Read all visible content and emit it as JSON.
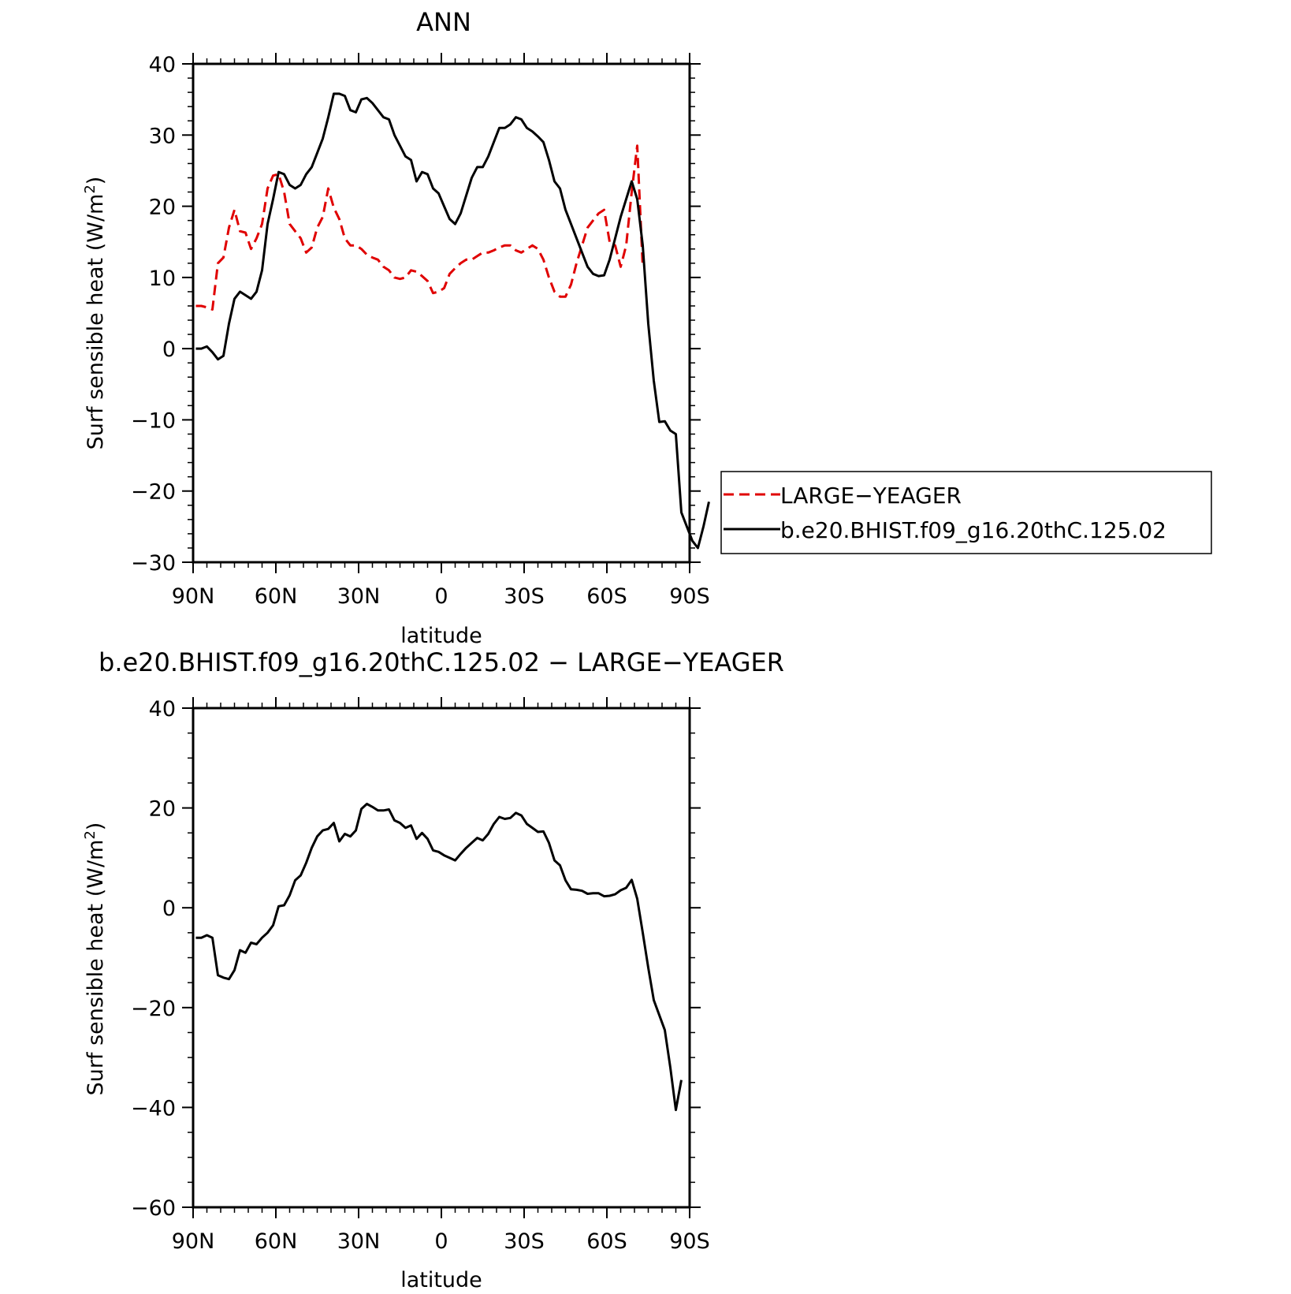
{
  "chart_data": [
    {
      "type": "line",
      "title": "ANN",
      "xlabel": "latitude",
      "ylabel": "Surf sensible heat (W/m",
      "ylabel_sup": "2",
      "ylabel_close": ")",
      "xlim": [
        90,
        -90
      ],
      "ylim": [
        -30,
        40
      ],
      "xticks": [
        90,
        60,
        30,
        0,
        -30,
        -60,
        -90
      ],
      "xtick_labels": [
        "90N",
        "60N",
        "30N",
        "0",
        "30S",
        "60S",
        "90S"
      ],
      "yticks": [
        40,
        30,
        20,
        10,
        0,
        -10,
        -20,
        -30
      ],
      "ytick_labels": [
        "40",
        "30",
        "20",
        "10",
        "0",
        "−10",
        "−20",
        "−30"
      ],
      "legend": {
        "placement": "right",
        "entries": [
          "LARGE−YEAGER",
          "b.e20.BHIST.f09_g16.20thC.125.02"
        ]
      },
      "series": [
        {
          "name": "LARGE−YEAGER",
          "color": "#e00000",
          "dash": true,
          "points": [
            [
              89,
              6
            ],
            [
              87,
              6
            ],
            [
              85,
              5.8
            ],
            [
              83,
              5.5
            ],
            [
              81,
              12
            ],
            [
              79,
              12.8
            ],
            [
              77,
              17
            ],
            [
              75,
              19.5
            ],
            [
              73,
              16.5
            ],
            [
              71,
              16.3
            ],
            [
              69,
              14
            ],
            [
              67,
              15.5
            ],
            [
              65,
              17.5
            ],
            [
              63,
              22.5
            ],
            [
              61,
              24.3
            ],
            [
              59,
              24.5
            ],
            [
              57,
              22
            ],
            [
              55,
              17.5
            ],
            [
              53,
              16.5
            ],
            [
              51,
              15.5
            ],
            [
              49,
              13.5
            ],
            [
              47,
              14.2
            ],
            [
              45,
              17
            ],
            [
              43,
              18.5
            ],
            [
              41,
              22.5
            ],
            [
              39,
              19.8
            ],
            [
              37,
              18.2
            ],
            [
              35,
              15.5
            ],
            [
              33,
              14.5
            ],
            [
              31,
              14.5
            ],
            [
              29,
              14
            ],
            [
              27,
              13.2
            ],
            [
              25,
              12.8
            ],
            [
              23,
              12.5
            ],
            [
              21,
              11.5
            ],
            [
              19,
              11
            ],
            [
              17,
              10
            ],
            [
              15,
              9.8
            ],
            [
              13,
              10
            ],
            [
              11,
              11
            ],
            [
              9,
              10.8
            ],
            [
              7,
              10.2
            ],
            [
              5,
              9.5
            ],
            [
              3,
              7.8
            ],
            [
              1,
              8
            ],
            [
              -1,
              8.5
            ],
            [
              -3,
              10.5
            ],
            [
              -5,
              11.3
            ],
            [
              -7,
              12
            ],
            [
              -9,
              12.5
            ],
            [
              -11,
              12.5
            ],
            [
              -13,
              13
            ],
            [
              -15,
              13.5
            ],
            [
              -17,
              13.5
            ],
            [
              -19,
              13.8
            ],
            [
              -21,
              14.2
            ],
            [
              -23,
              14.5
            ],
            [
              -25,
              14.5
            ],
            [
              -27,
              13.8
            ],
            [
              -29,
              13.5
            ],
            [
              -31,
              14
            ],
            [
              -33,
              14.5
            ],
            [
              -35,
              14
            ],
            [
              -37,
              12.5
            ],
            [
              -39,
              10
            ],
            [
              -41,
              8
            ],
            [
              -43,
              7.3
            ],
            [
              -45,
              7.3
            ],
            [
              -47,
              9
            ],
            [
              -49,
              12
            ],
            [
              -51,
              14.5
            ],
            [
              -53,
              17
            ],
            [
              -55,
              18
            ],
            [
              -57,
              19
            ],
            [
              -59,
              19.5
            ],
            [
              -61,
              15
            ],
            [
              -63,
              14.5
            ],
            [
              -65,
              11.5
            ],
            [
              -67,
              14.5
            ],
            [
              -69,
              22
            ],
            [
              -71,
              28.5
            ],
            [
              -73,
              11.5
            ]
          ]
        },
        {
          "name": "b.e20.BHIST.f09_g16.20thC.125.02",
          "color": "#000000",
          "dash": false,
          "points": [
            [
              89,
              0
            ],
            [
              87,
              0
            ],
            [
              85,
              0.3
            ],
            [
              83,
              -0.5
            ],
            [
              81,
              -1.5
            ],
            [
              79,
              -1
            ],
            [
              77,
              3.5
            ],
            [
              75,
              7
            ],
            [
              73,
              8
            ],
            [
              71,
              7.5
            ],
            [
              69,
              7
            ],
            [
              67,
              8
            ],
            [
              65,
              11
            ],
            [
              63,
              17.5
            ],
            [
              61,
              21
            ],
            [
              59,
              24.8
            ],
            [
              57,
              24.5
            ],
            [
              55,
              23
            ],
            [
              53,
              22.5
            ],
            [
              51,
              23
            ],
            [
              49,
              24.5
            ],
            [
              47,
              25.5
            ],
            [
              45,
              27.5
            ],
            [
              43,
              29.5
            ],
            [
              41,
              32.5
            ],
            [
              39,
              35.8
            ],
            [
              37,
              35.8
            ],
            [
              35,
              35.5
            ],
            [
              33,
              33.5
            ],
            [
              31,
              33.2
            ],
            [
              29,
              35
            ],
            [
              27,
              35.2
            ],
            [
              25,
              34.5
            ],
            [
              23,
              33.5
            ],
            [
              21,
              32.5
            ],
            [
              19,
              32.2
            ],
            [
              17,
              30
            ],
            [
              15,
              28.5
            ],
            [
              13,
              27
            ],
            [
              11,
              26.5
            ],
            [
              9,
              23.5
            ],
            [
              7,
              24.8
            ],
            [
              5,
              24.5
            ],
            [
              3,
              22.5
            ],
            [
              1,
              21.8
            ],
            [
              -1,
              20
            ],
            [
              -3,
              18.2
            ],
            [
              -5,
              17.5
            ],
            [
              -7,
              19
            ],
            [
              -9,
              21.5
            ],
            [
              -11,
              24
            ],
            [
              -13,
              25.5
            ],
            [
              -15,
              25.5
            ],
            [
              -17,
              27
            ],
            [
              -19,
              29
            ],
            [
              -21,
              31
            ],
            [
              -23,
              31
            ],
            [
              -25,
              31.5
            ],
            [
              -27,
              32.5
            ],
            [
              -29,
              32.2
            ],
            [
              -31,
              31
            ],
            [
              -33,
              30.5
            ],
            [
              -35,
              29.8
            ],
            [
              -37,
              29
            ],
            [
              -39,
              26.5
            ],
            [
              -41,
              23.5
            ],
            [
              -43,
              22.5
            ],
            [
              -45,
              19.5
            ],
            [
              -47,
              17.5
            ],
            [
              -49,
              15.5
            ],
            [
              -51,
              13.5
            ],
            [
              -53,
              11.5
            ],
            [
              -55,
              10.5
            ],
            [
              -57,
              10.2
            ],
            [
              -59,
              10.3
            ],
            [
              -61,
              12.5
            ],
            [
              -63,
              15.5
            ],
            [
              -65,
              18.5
            ],
            [
              -67,
              21
            ],
            [
              -69,
              23.5
            ],
            [
              -71,
              21
            ],
            [
              -73,
              14.5
            ],
            [
              -75,
              3.5
            ],
            [
              -77,
              -4.5
            ],
            [
              -79,
              -10.3
            ],
            [
              -81,
              -10.2
            ],
            [
              -83,
              -11.5
            ],
            [
              -85,
              -12
            ],
            [
              -87,
              -23
            ],
            [
              -89,
              -25
            ],
            [
              -91,
              -27
            ],
            [
              -93,
              -28
            ],
            [
              -95,
              -25
            ],
            [
              -97,
              -21.5
            ]
          ]
        }
      ]
    },
    {
      "type": "line",
      "title": "b.e20.BHIST.f09_g16.20thC.125.02 − LARGE−YEAGER",
      "xlabel": "latitude",
      "ylabel": "Surf sensible heat (W/m",
      "ylabel_sup": "2",
      "ylabel_close": ")",
      "xlim": [
        90,
        -90
      ],
      "ylim": [
        -60,
        40
      ],
      "xticks": [
        90,
        60,
        30,
        0,
        -30,
        -60,
        -90
      ],
      "xtick_labels": [
        "90N",
        "60N",
        "30N",
        "0",
        "30S",
        "60S",
        "90S"
      ],
      "yticks": [
        40,
        20,
        0,
        -20,
        -40,
        -60
      ],
      "ytick_labels": [
        "40",
        "20",
        "0",
        "−20",
        "−40",
        "−60"
      ],
      "series": [
        {
          "color": "#000000",
          "dash": false,
          "points": [
            [
              89,
              -6
            ],
            [
              87,
              -6
            ],
            [
              85,
              -5.5
            ],
            [
              83,
              -6
            ],
            [
              81,
              -13.5
            ],
            [
              79,
              -14
            ],
            [
              77,
              -14.3
            ],
            [
              75,
              -12.5
            ],
            [
              73,
              -8.5
            ],
            [
              71,
              -9
            ],
            [
              69,
              -7
            ],
            [
              67,
              -7.3
            ],
            [
              65,
              -6
            ],
            [
              63,
              -5
            ],
            [
              61,
              -3.5
            ],
            [
              59,
              0.3
            ],
            [
              57,
              0.5
            ],
            [
              55,
              2.5
            ],
            [
              53,
              5.5
            ],
            [
              51,
              6.5
            ],
            [
              49,
              9
            ],
            [
              47,
              12
            ],
            [
              45,
              14.3
            ],
            [
              43,
              15.5
            ],
            [
              41,
              15.8
            ],
            [
              39,
              17
            ],
            [
              37,
              13.3
            ],
            [
              35,
              14.8
            ],
            [
              33,
              14.3
            ],
            [
              31,
              15.5
            ],
            [
              29,
              19.8
            ],
            [
              27,
              20.8
            ],
            [
              25,
              20.2
            ],
            [
              23,
              19.5
            ],
            [
              21,
              19.5
            ],
            [
              19,
              19.7
            ],
            [
              17,
              17.5
            ],
            [
              15,
              17
            ],
            [
              13,
              16
            ],
            [
              11,
              16.5
            ],
            [
              9,
              13.8
            ],
            [
              7,
              15
            ],
            [
              5,
              13.8
            ],
            [
              3,
              11.5
            ],
            [
              1,
              11.2
            ],
            [
              -1,
              10.5
            ],
            [
              -3,
              10
            ],
            [
              -5,
              9.5
            ],
            [
              -7,
              10.8
            ],
            [
              -9,
              12
            ],
            [
              -11,
              13
            ],
            [
              -13,
              14
            ],
            [
              -15,
              13.5
            ],
            [
              -17,
              14.8
            ],
            [
              -19,
              16.8
            ],
            [
              -21,
              18.2
            ],
            [
              -23,
              17.8
            ],
            [
              -25,
              18
            ],
            [
              -27,
              19
            ],
            [
              -29,
              18.5
            ],
            [
              -31,
              16.8
            ],
            [
              -33,
              16
            ],
            [
              -35,
              15.2
            ],
            [
              -37,
              15.3
            ],
            [
              -39,
              13
            ],
            [
              -41,
              9.5
            ],
            [
              -43,
              8.5
            ],
            [
              -45,
              5.5
            ],
            [
              -47,
              3.7
            ],
            [
              -49,
              3.6
            ],
            [
              -51,
              3.4
            ],
            [
              -53,
              2.8
            ],
            [
              -55,
              2.9
            ],
            [
              -57,
              2.9
            ],
            [
              -59,
              2.3
            ],
            [
              -61,
              2.4
            ],
            [
              -63,
              2.7
            ],
            [
              -65,
              3.5
            ],
            [
              -67,
              4
            ],
            [
              -69,
              5.6
            ],
            [
              -71,
              1.8
            ],
            [
              -73,
              -5
            ],
            [
              -75,
              -12
            ],
            [
              -77,
              -18.5
            ],
            [
              -79,
              -21.5
            ],
            [
              -81,
              -24.5
            ],
            [
              -83,
              -32
            ],
            [
              -85,
              -40.5
            ],
            [
              -87,
              -34.5
            ]
          ]
        }
      ]
    }
  ]
}
